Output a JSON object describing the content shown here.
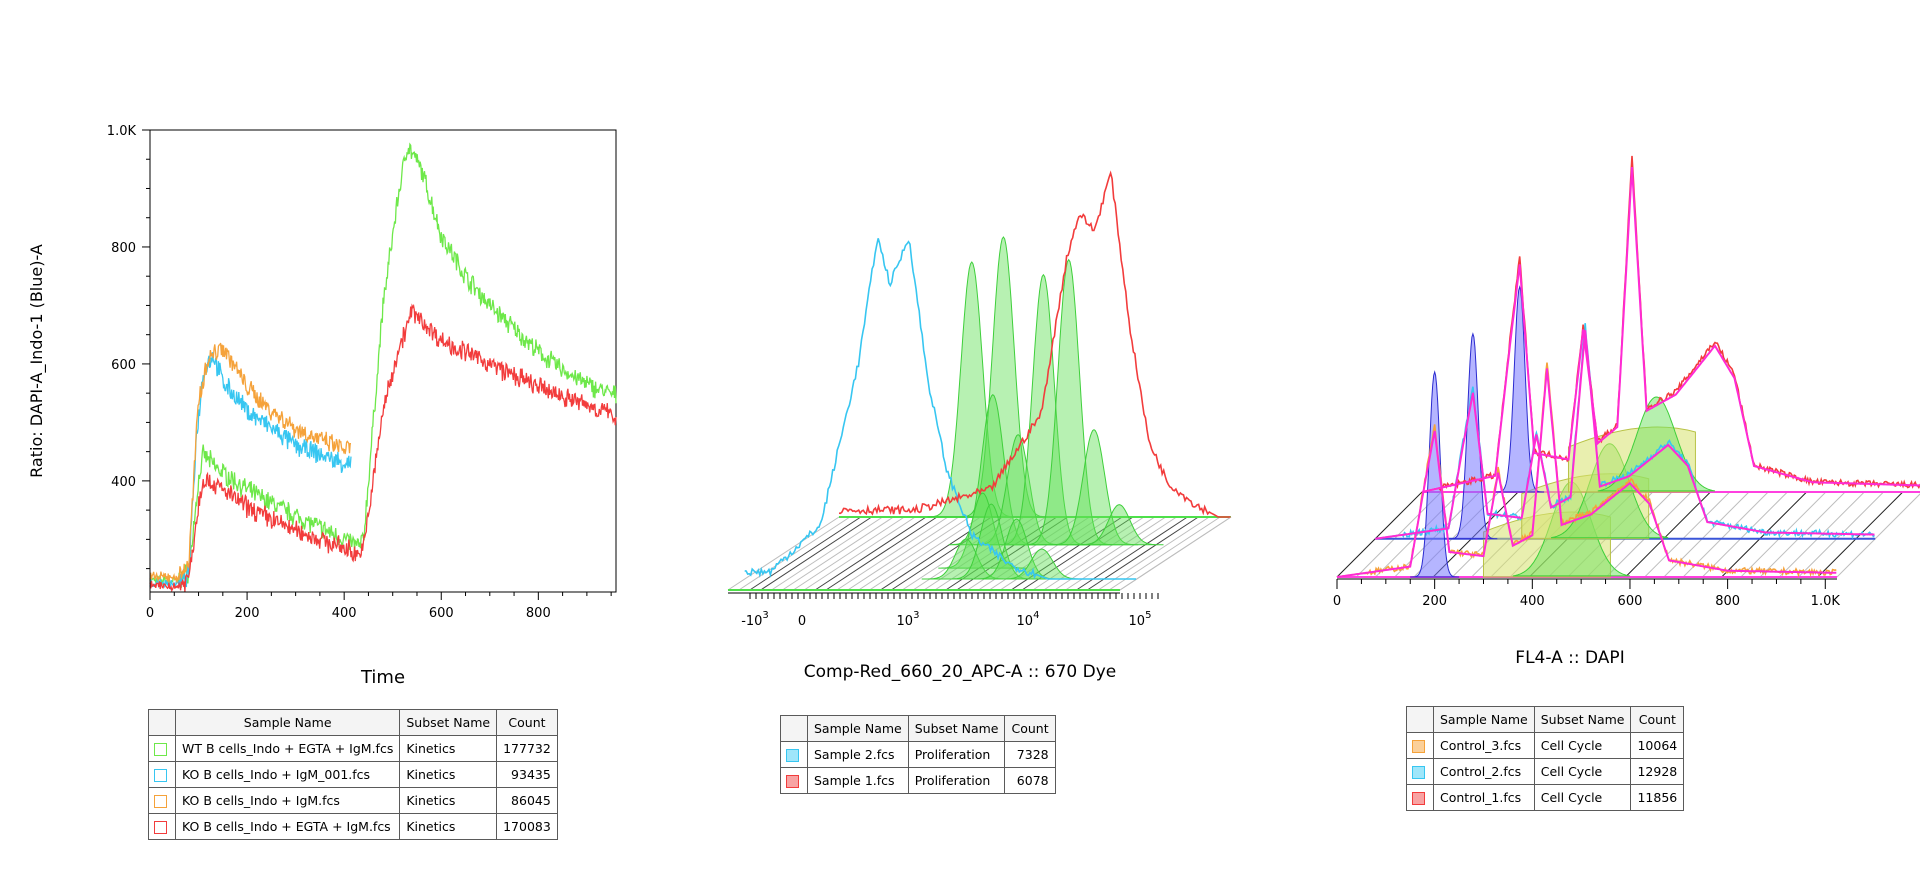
{
  "chart_data": [
    {
      "type": "line",
      "xlabel": "Time",
      "ylabel": "Ratio: DAPI-A_Indo-1 (Blue)-A",
      "xlim": [
        0,
        960
      ],
      "ylim": [
        210,
        1000
      ],
      "xticks": [
        0,
        200,
        400,
        600,
        800
      ],
      "yticks": [
        400,
        600,
        800,
        1000
      ],
      "ytick_labels": [
        "400",
        "600",
        "800",
        "1.0K"
      ],
      "xtick_labels": [
        "0",
        "200",
        "400",
        "600",
        "800"
      ],
      "series": [
        {
          "name": "WT B cells_Indo + EGTA + IgM.fcs",
          "color": "#6ee84a",
          "x": [
            0,
            60,
            80,
            100,
            110,
            140,
            200,
            300,
            400,
            430,
            440,
            480,
            510,
            530,
            560,
            600,
            650,
            700,
            750,
            800,
            850,
            900,
            960
          ],
          "y": [
            230,
            230,
            245,
            400,
            445,
            420,
            385,
            340,
            300,
            288,
            300,
            700,
            880,
            975,
            930,
            820,
            750,
            700,
            660,
            620,
            590,
            565,
            545
          ]
        },
        {
          "name": "KO B cells_Indo + IgM_001.fcs",
          "color": "#37c6f1",
          "x": [
            0,
            60,
            80,
            95,
            110,
            130,
            150,
            200,
            250,
            300,
            350,
            400,
            415
          ],
          "y": [
            225,
            225,
            240,
            470,
            590,
            615,
            570,
            520,
            490,
            460,
            445,
            430,
            430
          ]
        },
        {
          "name": "KO B cells_Indo + IgM.fcs",
          "color": "#f5a23a",
          "x": [
            0,
            60,
            80,
            100,
            120,
            150,
            200,
            250,
            300,
            350,
            400,
            415
          ],
          "y": [
            235,
            235,
            260,
            540,
            610,
            630,
            560,
            520,
            490,
            470,
            455,
            455
          ]
        },
        {
          "name": "KO B cells_Indo + EGTA + IgM.fcs",
          "color": "#f23c3c",
          "x": [
            0,
            60,
            80,
            100,
            110,
            150,
            200,
            300,
            400,
            430,
            440,
            480,
            510,
            540,
            600,
            700,
            800,
            900,
            960
          ],
          "y": [
            220,
            220,
            235,
            360,
            405,
            385,
            355,
            315,
            285,
            275,
            285,
            520,
            620,
            690,
            640,
            600,
            560,
            530,
            510
          ]
        }
      ],
      "legend": {
        "headers": [
          "Sample Name",
          "Subset Name",
          "Count"
        ],
        "rows": [
          {
            "color": "#6ee84a",
            "sample": "WT B cells_Indo + EGTA + IgM.fcs",
            "subset": "Kinetics",
            "count": "177732"
          },
          {
            "color": "#37c6f1",
            "sample": "KO B cells_Indo + IgM_001.fcs",
            "subset": "Kinetics",
            "count": "93435"
          },
          {
            "color": "#f5a23a",
            "sample": "KO B cells_Indo + IgM.fcs",
            "subset": "Kinetics",
            "count": "86045"
          },
          {
            "color": "#f23c3c",
            "sample": "KO B cells_Indo + EGTA + IgM.fcs",
            "subset": "Kinetics",
            "count": "170083"
          }
        ]
      }
    },
    {
      "type": "area",
      "xlabel": "Comp-Red_660_20_APC-A :: 670 Dye",
      "xscale": "biexponential",
      "xtick_labels": [
        {
          "base": "-10",
          "exp": "3"
        },
        {
          "base": "0",
          "exp": ""
        },
        {
          "base": "10",
          "exp": "3"
        },
        {
          "base": "10",
          "exp": "4"
        },
        {
          "base": "10",
          "exp": "5"
        }
      ],
      "series": [
        {
          "name": "Sample 2.fcs",
          "color": "#37c6f1",
          "peaks_log10": [
            3.45,
            3.7
          ],
          "x": [
            2.6,
            3.0,
            3.3,
            3.45,
            3.55,
            3.7,
            3.85,
            4.0,
            4.2,
            4.5,
            4.8
          ],
          "y": [
            0.02,
            0.15,
            0.6,
            0.95,
            0.82,
            0.95,
            0.55,
            0.3,
            0.12,
            0.04,
            0.0
          ]
        },
        {
          "name": "Sample 1.fcs",
          "color": "#f23c3c",
          "peaks_log10": [
            4.3,
            4.55
          ],
          "x": [
            3.0,
            3.6,
            4.0,
            4.2,
            4.3,
            4.42,
            4.55,
            4.7,
            4.85,
            5.0,
            5.2,
            5.4
          ],
          "y": [
            0.02,
            0.08,
            0.3,
            0.75,
            0.88,
            0.83,
            1.0,
            0.55,
            0.22,
            0.1,
            0.04,
            0.0
          ]
        }
      ],
      "generation_peaks_log10": [
        3.45,
        3.7,
        3.95,
        4.15,
        4.35,
        4.55,
        4.75,
        4.95
      ],
      "legend": {
        "headers": [
          "Sample Name",
          "Subset Name",
          "Count"
        ],
        "rows": [
          {
            "color": "#37c6f1",
            "sample": "Sample 2.fcs",
            "subset": "Proliferation",
            "count": "7328"
          },
          {
            "color": "#f23c3c",
            "sample": "Sample 1.fcs",
            "subset": "Proliferation",
            "count": "6078"
          }
        ]
      }
    },
    {
      "type": "area",
      "xlabel": "FL4-A :: DAPI",
      "xlim": [
        0,
        1024
      ],
      "xtick_labels": [
        "0",
        "200",
        "400",
        "600",
        "800",
        "1.0K"
      ],
      "series": [
        {
          "name": "Control_3.fcs",
          "color": "#f5a23a",
          "x": [
            0,
            150,
            180,
            200,
            230,
            300,
            330,
            360,
            400,
            430,
            460,
            520,
            600,
            640,
            680,
            800,
            1024
          ],
          "y": [
            0,
            0.05,
            0.45,
            0.7,
            0.12,
            0.1,
            0.5,
            0.15,
            0.2,
            1.0,
            0.25,
            0.3,
            0.45,
            0.35,
            0.08,
            0.03,
            0.02
          ]
        },
        {
          "name": "Control_2.fcs",
          "color": "#37c6f1",
          "x": [
            0,
            150,
            180,
            200,
            230,
            300,
            330,
            360,
            400,
            430,
            460,
            520,
            600,
            640,
            680,
            800,
            1024
          ],
          "y": [
            0,
            0.05,
            0.45,
            0.7,
            0.12,
            0.1,
            0.5,
            0.15,
            0.2,
            1.0,
            0.25,
            0.3,
            0.45,
            0.35,
            0.08,
            0.03,
            0.02
          ]
        },
        {
          "name": "Control_1.fcs",
          "color": "#f23c3c",
          "x": [
            0,
            150,
            180,
            200,
            230,
            300,
            330,
            360,
            400,
            430,
            460,
            520,
            600,
            640,
            680,
            800,
            1024
          ],
          "y": [
            0,
            0.05,
            0.45,
            0.7,
            0.12,
            0.1,
            0.5,
            0.15,
            0.2,
            1.0,
            0.25,
            0.3,
            0.45,
            0.35,
            0.08,
            0.03,
            0.02
          ]
        }
      ],
      "legend": {
        "headers": [
          "Sample Name",
          "Subset Name",
          "Count"
        ],
        "rows": [
          {
            "color": "#f5a23a",
            "sample": "Control_3.fcs",
            "subset": "Cell Cycle",
            "count": "10064"
          },
          {
            "color": "#37c6f1",
            "sample": "Control_2.fcs",
            "subset": "Cell Cycle",
            "count": "12928"
          },
          {
            "color": "#f23c3c",
            "sample": "Control_1.fcs",
            "subset": "Cell Cycle",
            "count": "11856"
          }
        ]
      }
    }
  ]
}
